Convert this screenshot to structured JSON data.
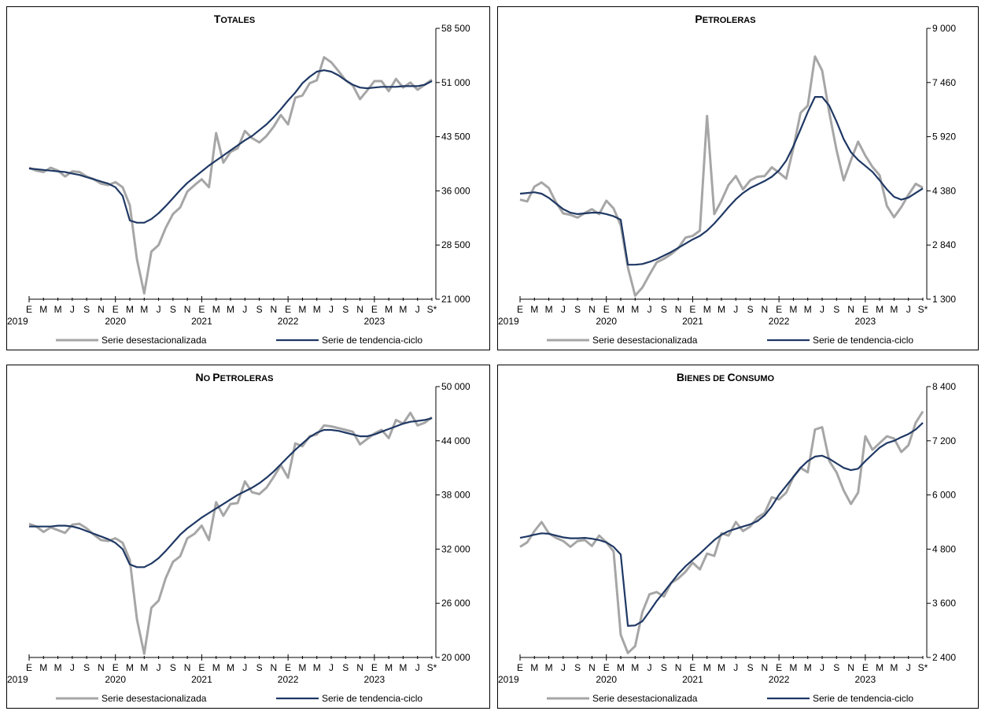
{
  "colors": {
    "seasonal": "#A6A6A6",
    "trend": "#1F3864",
    "axis": "#000000"
  },
  "legend": {
    "seasonal": "Serie desestacionalizada",
    "trend": "Serie de tendencia-ciclo"
  },
  "month_labels": [
    "E",
    "M",
    "M",
    "J",
    "S",
    "N",
    "E",
    "M",
    "M",
    "J",
    "S",
    "N",
    "E",
    "M",
    "M",
    "J",
    "S",
    "N",
    "E",
    "M",
    "M",
    "J",
    "S",
    "N",
    "E",
    "M",
    "M",
    "J",
    "S*"
  ],
  "year_labels": [
    "2019",
    "2020",
    "2021",
    "2022",
    "2023"
  ],
  "chart_data": [
    {
      "type": "line",
      "title_main": "T",
      "title_caps": "OTALES",
      "ylim": [
        21000,
        58500
      ],
      "yticks": [
        "21 000",
        "28 500",
        "36 000",
        "43 500",
        "51 000",
        "58 500"
      ],
      "x": [
        "2019-01",
        "2019-02",
        "2019-03",
        "2019-04",
        "2019-05",
        "2019-06",
        "2019-07",
        "2019-08",
        "2019-09",
        "2019-10",
        "2019-11",
        "2019-12",
        "2020-01",
        "2020-02",
        "2020-03",
        "2020-04",
        "2020-05",
        "2020-06",
        "2020-07",
        "2020-08",
        "2020-09",
        "2020-10",
        "2020-11",
        "2020-12",
        "2021-01",
        "2021-02",
        "2021-03",
        "2021-04",
        "2021-05",
        "2021-06",
        "2021-07",
        "2021-08",
        "2021-09",
        "2021-10",
        "2021-11",
        "2021-12",
        "2022-01",
        "2022-02",
        "2022-03",
        "2022-04",
        "2022-05",
        "2022-06",
        "2022-07",
        "2022-08",
        "2022-09",
        "2022-10",
        "2022-11",
        "2022-12",
        "2023-01",
        "2023-02",
        "2023-03",
        "2023-04",
        "2023-05",
        "2023-06",
        "2023-07",
        "2023-08",
        "2023-09"
      ],
      "series": [
        {
          "name": "Serie desestacionalizada",
          "values": [
            39200,
            38800,
            38600,
            39200,
            38800,
            38000,
            38700,
            38600,
            38000,
            37600,
            37000,
            36800,
            37200,
            36500,
            34000,
            26500,
            21800,
            27600,
            28500,
            30900,
            32800,
            33700,
            35900,
            36800,
            37600,
            36500,
            44000,
            39900,
            41400,
            41900,
            44300,
            43300,
            42700,
            43600,
            44900,
            46500,
            45200,
            48900,
            49200,
            50900,
            51300,
            54500,
            53800,
            52600,
            51300,
            50600,
            48700,
            49900,
            51200,
            51200,
            49800,
            51500,
            50300,
            51000,
            50000,
            50700,
            51400
          ]
        },
        {
          "name": "Serie de tendencia-ciclo",
          "values": [
            39100,
            39000,
            38900,
            38800,
            38700,
            38600,
            38400,
            38200,
            37900,
            37600,
            37300,
            37000,
            36500,
            35300,
            31900,
            31600,
            31600,
            32100,
            32900,
            33900,
            35000,
            36100,
            37100,
            37900,
            38700,
            39500,
            40200,
            40900,
            41600,
            42300,
            43000,
            43600,
            44400,
            45200,
            46200,
            47300,
            48500,
            49600,
            50900,
            51800,
            52500,
            52700,
            52500,
            52000,
            51300,
            50700,
            50300,
            50200,
            50300,
            50400,
            50400,
            50400,
            50500,
            50500,
            50500,
            50700,
            51200
          ]
        }
      ]
    },
    {
      "type": "line",
      "title_main": "P",
      "title_caps": "ETROLERAS",
      "ylim": [
        1300,
        9000
      ],
      "yticks": [
        "1 300",
        "2 840",
        "4 380",
        "5 920",
        "7 460",
        "9 000"
      ],
      "x": [
        "2019-01",
        "2019-02",
        "2019-03",
        "2019-04",
        "2019-05",
        "2019-06",
        "2019-07",
        "2019-08",
        "2019-09",
        "2019-10",
        "2019-11",
        "2019-12",
        "2020-01",
        "2020-02",
        "2020-03",
        "2020-04",
        "2020-05",
        "2020-06",
        "2020-07",
        "2020-08",
        "2020-09",
        "2020-10",
        "2020-11",
        "2020-12",
        "2021-01",
        "2021-02",
        "2021-03",
        "2021-04",
        "2021-05",
        "2021-06",
        "2021-07",
        "2021-08",
        "2021-09",
        "2021-10",
        "2021-11",
        "2021-12",
        "2022-01",
        "2022-02",
        "2022-03",
        "2022-04",
        "2022-05",
        "2022-06",
        "2022-07",
        "2022-08",
        "2022-09",
        "2022-10",
        "2022-11",
        "2022-12",
        "2023-01",
        "2023-02",
        "2023-03",
        "2023-04",
        "2023-05",
        "2023-06",
        "2023-07",
        "2023-08",
        "2023-09"
      ],
      "series": [
        {
          "name": "Serie desestacionalizada",
          "values": [
            4130,
            4080,
            4500,
            4620,
            4460,
            4050,
            3740,
            3700,
            3620,
            3750,
            3860,
            3720,
            4100,
            3880,
            3400,
            2200,
            1400,
            1630,
            2000,
            2350,
            2450,
            2580,
            2750,
            3050,
            3100,
            3250,
            6510,
            3720,
            4100,
            4550,
            4800,
            4420,
            4680,
            4780,
            4800,
            5050,
            4900,
            4730,
            5600,
            6600,
            6800,
            8200,
            7800,
            6600,
            5540,
            4680,
            5250,
            5780,
            5380,
            5060,
            4820,
            3950,
            3630,
            3920,
            4270,
            4580,
            4470
          ]
        },
        {
          "name": "Serie de tendencia-ciclo",
          "values": [
            4300,
            4320,
            4340,
            4300,
            4180,
            4020,
            3860,
            3760,
            3720,
            3740,
            3760,
            3760,
            3720,
            3660,
            3560,
            2280,
            2280,
            2300,
            2360,
            2440,
            2540,
            2640,
            2760,
            2880,
            3000,
            3100,
            3250,
            3450,
            3680,
            3920,
            4140,
            4320,
            4460,
            4560,
            4660,
            4780,
            4960,
            5240,
            5650,
            6130,
            6620,
            7050,
            7050,
            6800,
            6350,
            5850,
            5480,
            5260,
            5090,
            4920,
            4680,
            4420,
            4210,
            4130,
            4190,
            4320,
            4450
          ]
        }
      ]
    },
    {
      "type": "line",
      "title_main": "N",
      "title_caps": "O ",
      "title_main2": "P",
      "title_caps2": "ETROLERAS",
      "ylim": [
        20000,
        50000
      ],
      "yticks": [
        "20 000",
        "26 000",
        "32 000",
        "38 000",
        "44 000",
        "50 000"
      ],
      "x": [
        "2019-01",
        "2019-02",
        "2019-03",
        "2019-04",
        "2019-05",
        "2019-06",
        "2019-07",
        "2019-08",
        "2019-09",
        "2019-10",
        "2019-11",
        "2019-12",
        "2020-01",
        "2020-02",
        "2020-03",
        "2020-04",
        "2020-05",
        "2020-06",
        "2020-07",
        "2020-08",
        "2020-09",
        "2020-10",
        "2020-11",
        "2020-12",
        "2021-01",
        "2021-02",
        "2021-03",
        "2021-04",
        "2021-05",
        "2021-06",
        "2021-07",
        "2021-08",
        "2021-09",
        "2021-10",
        "2021-11",
        "2021-12",
        "2022-01",
        "2022-02",
        "2022-03",
        "2022-04",
        "2022-05",
        "2022-06",
        "2022-07",
        "2022-08",
        "2022-09",
        "2022-10",
        "2022-11",
        "2022-12",
        "2023-01",
        "2023-02",
        "2023-03",
        "2023-04",
        "2023-05",
        "2023-06",
        "2023-07",
        "2023-08",
        "2023-09"
      ],
      "series": [
        {
          "name": "Serie desestacionalizada",
          "values": [
            34800,
            34500,
            33900,
            34400,
            34100,
            33800,
            34700,
            34800,
            34300,
            33600,
            33000,
            32900,
            33200,
            32700,
            30800,
            24200,
            20400,
            25500,
            26300,
            28800,
            30600,
            31200,
            33200,
            33700,
            34600,
            33000,
            37200,
            35700,
            37000,
            37100,
            39500,
            38300,
            38100,
            38800,
            40000,
            41300,
            39900,
            43700,
            43400,
            44500,
            44700,
            45700,
            45600,
            45400,
            45200,
            45000,
            43600,
            44200,
            44800,
            45200,
            44300,
            46300,
            45900,
            47100,
            45700,
            46000,
            46600
          ]
        },
        {
          "name": "Serie de tendencia-ciclo",
          "values": [
            34500,
            34500,
            34500,
            34500,
            34600,
            34600,
            34500,
            34300,
            34000,
            33700,
            33400,
            33100,
            32700,
            32000,
            30300,
            30000,
            30000,
            30400,
            31000,
            31800,
            32700,
            33600,
            34300,
            34900,
            35500,
            36000,
            36500,
            37000,
            37500,
            38000,
            38400,
            38800,
            39300,
            39900,
            40600,
            41400,
            42200,
            43000,
            43700,
            44400,
            44900,
            45200,
            45200,
            45100,
            44900,
            44700,
            44500,
            44500,
            44700,
            45000,
            45300,
            45600,
            45900,
            46100,
            46200,
            46300,
            46500
          ]
        }
      ]
    },
    {
      "type": "line",
      "title_main": "B",
      "title_caps": "IENES DE ",
      "title_main2": "C",
      "title_caps2": "ONSUMO",
      "ylim": [
        2400,
        8400
      ],
      "yticks": [
        "2 400",
        "3 600",
        "4 800",
        "6 000",
        "7 200",
        "8 400"
      ],
      "x": [
        "2019-01",
        "2019-02",
        "2019-03",
        "2019-04",
        "2019-05",
        "2019-06",
        "2019-07",
        "2019-08",
        "2019-09",
        "2019-10",
        "2019-11",
        "2019-12",
        "2020-01",
        "2020-02",
        "2020-03",
        "2020-04",
        "2020-05",
        "2020-06",
        "2020-07",
        "2020-08",
        "2020-09",
        "2020-10",
        "2020-11",
        "2020-12",
        "2021-01",
        "2021-02",
        "2021-03",
        "2021-04",
        "2021-05",
        "2021-06",
        "2021-07",
        "2021-08",
        "2021-09",
        "2021-10",
        "2021-11",
        "2021-12",
        "2022-01",
        "2022-02",
        "2022-03",
        "2022-04",
        "2022-05",
        "2022-06",
        "2022-07",
        "2022-08",
        "2022-09",
        "2022-10",
        "2022-11",
        "2022-12",
        "2023-01",
        "2023-02",
        "2023-03",
        "2023-04",
        "2023-05",
        "2023-06",
        "2023-07",
        "2023-08",
        "2023-09"
      ],
      "series": [
        {
          "name": "Serie desestacionalizada",
          "values": [
            4850,
            4950,
            5200,
            5400,
            5150,
            5050,
            4980,
            4850,
            4980,
            5000,
            4870,
            5100,
            4950,
            4750,
            2900,
            2500,
            2650,
            3400,
            3800,
            3850,
            3750,
            4050,
            4150,
            4300,
            4500,
            4350,
            4700,
            4650,
            5150,
            5100,
            5400,
            5200,
            5300,
            5500,
            5600,
            5950,
            5900,
            6050,
            6400,
            6600,
            6500,
            7450,
            7500,
            6750,
            6500,
            6100,
            5800,
            6050,
            7300,
            7000,
            7150,
            7300,
            7250,
            6950,
            7100,
            7600,
            7850
          ]
        },
        {
          "name": "Serie de tendencia-ciclo",
          "values": [
            5050,
            5080,
            5120,
            5150,
            5140,
            5100,
            5060,
            5040,
            5040,
            5050,
            5030,
            5000,
            4950,
            4850,
            4680,
            3100,
            3110,
            3200,
            3420,
            3650,
            3850,
            4050,
            4250,
            4420,
            4560,
            4700,
            4850,
            5000,
            5120,
            5200,
            5250,
            5300,
            5350,
            5420,
            5550,
            5750,
            6000,
            6200,
            6400,
            6600,
            6750,
            6850,
            6870,
            6800,
            6700,
            6600,
            6550,
            6580,
            6750,
            6900,
            7050,
            7150,
            7200,
            7280,
            7350,
            7450,
            7600
          ]
        }
      ]
    }
  ]
}
